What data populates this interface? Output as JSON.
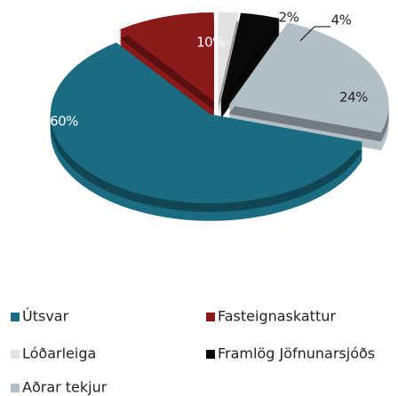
{
  "chart_data": {
    "type": "pie",
    "categories": [
      "Fasteignaskattur",
      "Lóðarleiga",
      "Framlög Jöfnunarsjóðs",
      "Aðrar tekjur",
      "Útsvar"
    ],
    "values": [
      10,
      2,
      4,
      24,
      60
    ],
    "value_labels": [
      "10%",
      "2%",
      "4%",
      "24%",
      "60%"
    ],
    "colors": [
      "#8b1a1a",
      "#e2e2e2",
      "#0a0a0a",
      "#b3bfc7",
      "#1b6c82"
    ],
    "legend": "bottom"
  }
}
